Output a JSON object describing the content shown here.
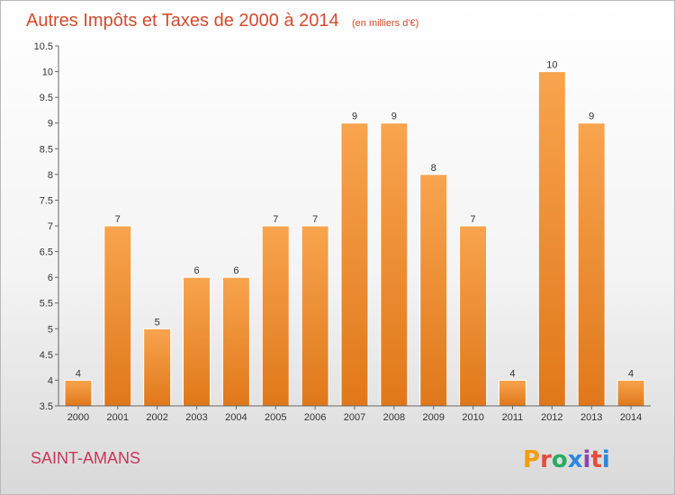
{
  "chart_data": {
    "type": "bar",
    "title": "Autres Impôts et Taxes de 2000 à 2014",
    "subtitle": "(en milliers d'€)",
    "categories": [
      "2000",
      "2001",
      "2002",
      "2003",
      "2004",
      "2005",
      "2006",
      "2007",
      "2008",
      "2009",
      "2010",
      "2011",
      "2012",
      "2013",
      "2014"
    ],
    "values": [
      4,
      7,
      5,
      6,
      6,
      7,
      7,
      9,
      9,
      8,
      7,
      4,
      10,
      9,
      4
    ],
    "value_labels": [
      "4",
      "7",
      "5",
      "6",
      "6",
      "7",
      "7",
      "9",
      "9",
      "8",
      "7",
      "4",
      "10",
      "9",
      "4"
    ],
    "ylim": [
      3.5,
      10.5
    ],
    "yticks": [
      "3.5",
      "4",
      "4.5",
      "5",
      "5.5",
      "6",
      "6.5",
      "7",
      "7.5",
      "8",
      "8.5",
      "9",
      "9.5",
      "10",
      "10.5"
    ],
    "grid": false,
    "bar_color_top": "#f8a44e",
    "bar_color_bottom": "#e0781a"
  },
  "footer": {
    "commune": "SAINT-AMANS",
    "brand": [
      "P",
      "r",
      "o",
      "x",
      "i",
      "t",
      "i"
    ],
    "brand_colors": [
      "#f39c12",
      "#e84c3d",
      "#27ae60",
      "#2e86de",
      "#8e44ad",
      "#e84c3d",
      "#2e86de"
    ]
  }
}
